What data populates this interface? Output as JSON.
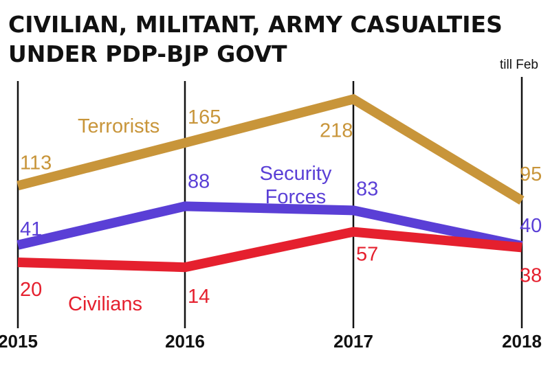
{
  "chart_data": {
    "type": "line",
    "title": "CIVILIAN, MILITANT, ARMY CASUALTIES UNDER PDP-BJP GOVT",
    "title_lines": [
      "CIVILIAN, MILITANT, ARMY CASUALTIES",
      "UNDER PDP-BJP GOVT"
    ],
    "x": [
      "2015",
      "2016",
      "2017",
      "2018"
    ],
    "annotation": "till Feb",
    "xlabel": "",
    "ylabel": "",
    "ylim": [
      0,
      230
    ],
    "grid": "vertical lines at each year",
    "series": [
      {
        "name": "Terrorists",
        "label_lines": [
          "Terrorists"
        ],
        "values": [
          113,
          165,
          218,
          95
        ],
        "color": "#c8953a"
      },
      {
        "name": "Security Forces",
        "label_lines": [
          "Security",
          "Forces"
        ],
        "values": [
          41,
          88,
          83,
          40
        ],
        "color": "#5a3fd6"
      },
      {
        "name": "Civilians",
        "label_lines": [
          "Civilians"
        ],
        "values": [
          20,
          14,
          57,
          38
        ],
        "color": "#e5202e"
      }
    ]
  }
}
